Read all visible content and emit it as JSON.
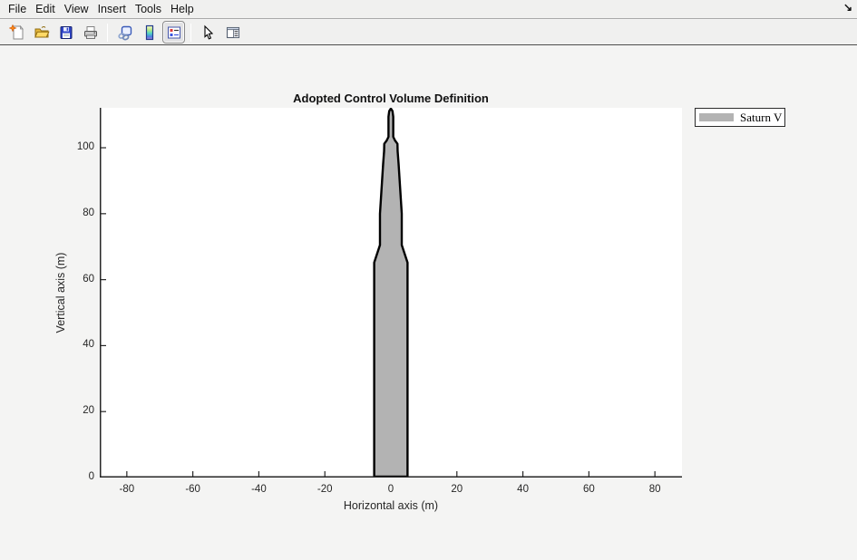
{
  "window": {
    "dock_arrow_glyph": "↘"
  },
  "menubar": {
    "items": [
      "File",
      "Edit",
      "View",
      "Insert",
      "Tools",
      "Help"
    ]
  },
  "toolbar": {
    "buttons": [
      "new-figure-icon",
      "open-file-icon",
      "save-figure-icon",
      "print-figure-icon",
      "link-plot-icon",
      "insert-colorbar-icon",
      "insert-legend-icon",
      "pointer-select-icon",
      "figure-palette-icon"
    ],
    "legend_button_pressed": true
  },
  "chart_data": {
    "type": "area",
    "title": "Adopted Control Volume Definition",
    "xlabel": "Horizontal axis (m)",
    "ylabel": "Vertical axis (m)",
    "xlim": [
      -88.2,
      88.2
    ],
    "ylim": [
      0,
      112.1
    ],
    "x_ticks": [
      -80,
      -60,
      -40,
      -20,
      0,
      20,
      40,
      60,
      80
    ],
    "y_ticks": [
      0,
      20,
      40,
      60,
      80,
      100
    ],
    "grid": false,
    "box": false,
    "axis_color": "#262626",
    "plot_background": "#ffffff",
    "figure_background": "#f4f4f3",
    "legend": {
      "position": "outside-top-right",
      "entries": [
        {
          "label": "Saturn V",
          "fill": "#b3b3b3",
          "edge": "#000000"
        }
      ]
    },
    "series": [
      {
        "name": "Saturn V",
        "kind": "filled-polygon",
        "fill": "#b3b3b3",
        "stroke": "#000000",
        "stroke_width": 2.4,
        "outline_points_m": [
          [
            -5.05,
            0.3
          ],
          [
            -5.05,
            65.2
          ],
          [
            -3.3,
            70.5
          ],
          [
            -3.3,
            80.0
          ],
          [
            -2.35,
            95.0
          ],
          [
            -2.05,
            99.0
          ],
          [
            -2.0,
            101.2
          ],
          [
            -1.25,
            102.2
          ],
          [
            -0.72,
            103.3
          ],
          [
            -0.72,
            109.4
          ],
          [
            -0.5,
            111.1
          ],
          [
            0,
            111.9
          ],
          [
            0.5,
            111.1
          ],
          [
            0.72,
            109.4
          ],
          [
            0.72,
            103.3
          ],
          [
            1.25,
            102.2
          ],
          [
            2.0,
            101.2
          ],
          [
            2.05,
            99.0
          ],
          [
            2.35,
            95.0
          ],
          [
            3.3,
            80.0
          ],
          [
            3.3,
            70.5
          ],
          [
            5.05,
            65.2
          ],
          [
            5.05,
            0.3
          ]
        ]
      }
    ]
  }
}
